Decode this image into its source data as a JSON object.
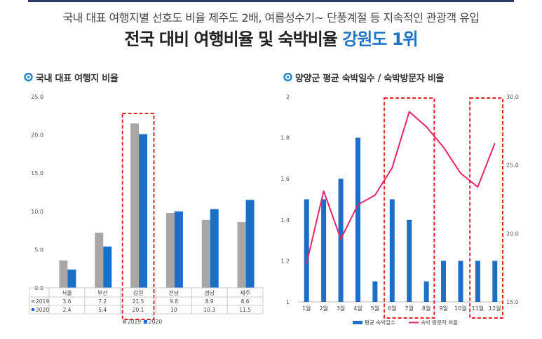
{
  "header": {
    "subtitle": "국내 대표 여행지별 선호도 비율 제주도 2배, 여름성수기~ 단풍계절 등 지속적인 관광객 유입",
    "headline_prefix": "전국 대비 여행비율 및 숙박비율",
    "headline_highlight": "강원도 1위"
  },
  "colors": {
    "series_2019": "#a9a6a6",
    "series_2020": "#1b6fc6",
    "line": "#e5236e",
    "highlight_box": "#e0242c",
    "icon": "#1d87c9"
  },
  "chart_data": [
    {
      "type": "bar",
      "title": "국내 대표 여행지 비율",
      "categories": [
        "서울",
        "부산",
        "강원",
        "전남",
        "경남",
        "제주"
      ],
      "series": [
        {
          "name": "2019",
          "values": [
            3.6,
            7.2,
            21.5,
            9.8,
            8.9,
            8.6
          ]
        },
        {
          "name": "2020",
          "values": [
            2.4,
            5.4,
            20.1,
            10,
            10.3,
            11.5
          ]
        }
      ],
      "value_labels": {
        "2019": [
          "3.6",
          "7.2",
          "21.5",
          "9.8",
          "8.9",
          "8.6"
        ],
        "2020": [
          "2.4",
          "5.4",
          "20.1",
          "10",
          "10.3",
          "11.5"
        ]
      },
      "ylim": [
        0,
        25
      ],
      "yticks": [
        "0.0",
        "5.0",
        "10.0",
        "15.0",
        "20.0",
        "25.0"
      ],
      "highlight_category": "강원",
      "legend_position": "bottom",
      "table_below": true
    },
    {
      "type": "bar",
      "title": "양양군 평균 숙박일수 / 숙박방문자 비율",
      "categories": [
        "1월",
        "2월",
        "3월",
        "4월",
        "5월",
        "6월",
        "7월",
        "8월",
        "9월",
        "10월",
        "11월",
        "12월"
      ],
      "series": [
        {
          "name": "평균 숙박일수",
          "type": "bar",
          "axis": "left",
          "values": [
            1.5,
            1.5,
            1.6,
            1.8,
            1.1,
            1.5,
            1.4,
            1.1,
            1.2,
            1.2,
            1.2,
            1.2
          ]
        },
        {
          "name": "숙박 방문자 비율",
          "type": "line",
          "axis": "right",
          "values": [
            17.8,
            23.1,
            19.6,
            22.1,
            22.8,
            24.8,
            28.9,
            27.8,
            26.3,
            24.4,
            23.4,
            26.6
          ]
        }
      ],
      "ylim_left": [
        1,
        2
      ],
      "yticks_left": [
        "1",
        "1.2",
        "1.4",
        "1.6",
        "1.8",
        "2"
      ],
      "ylim_right": [
        15,
        30
      ],
      "yticks_right": [
        "15.0",
        "20.0",
        "25.0",
        "30.0"
      ],
      "highlight_ranges": [
        [
          "6월",
          "8월"
        ],
        [
          "11월",
          "12월"
        ]
      ],
      "legend_position": "bottom"
    }
  ]
}
